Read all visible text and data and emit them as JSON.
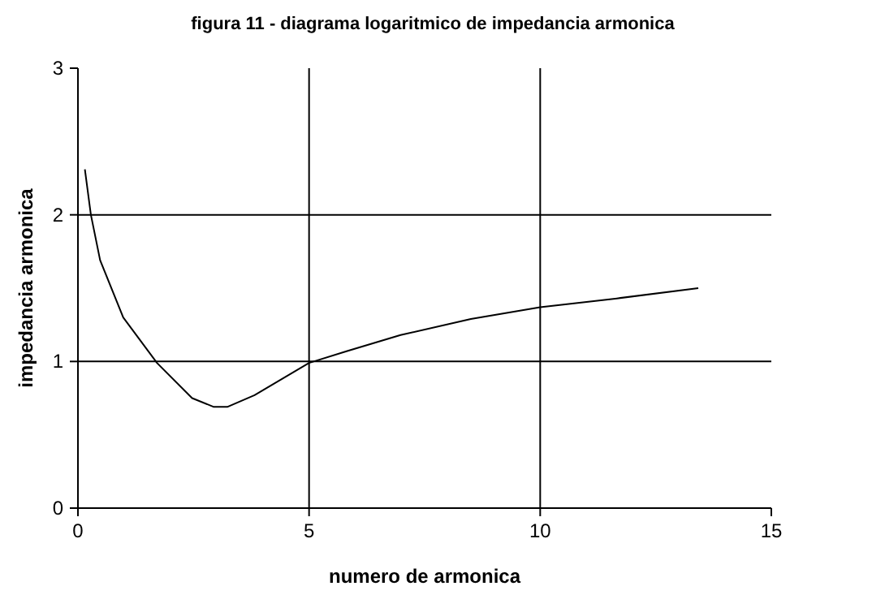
{
  "chart_data": {
    "type": "line",
    "title": "figura 11 - diagrama logaritmico de impedancia armonica",
    "xlabel": "numero de armonica",
    "ylabel": "impedancia armonica",
    "series": [
      {
        "color": "#000000",
        "x": [
          0.15,
          0.28,
          0.48,
          0.98,
          1.71,
          2.47,
          2.94,
          3.23,
          3.82,
          5.0,
          5.81,
          6.98,
          8.5,
          10.0,
          11.66,
          13.42
        ],
        "values": [
          2.31,
          2.0,
          1.69,
          1.3,
          0.99,
          0.75,
          0.69,
          0.69,
          0.77,
          0.99,
          1.07,
          1.18,
          1.29,
          1.37,
          1.43,
          1.5
        ]
      }
    ],
    "xlim": [
      0,
      15
    ],
    "xticks": [
      0,
      5,
      10,
      15
    ],
    "ylim": [
      0,
      3
    ],
    "yticks": [
      0,
      1,
      2,
      3
    ],
    "grid": true,
    "marker": "none",
    "line_style": "solid"
  }
}
